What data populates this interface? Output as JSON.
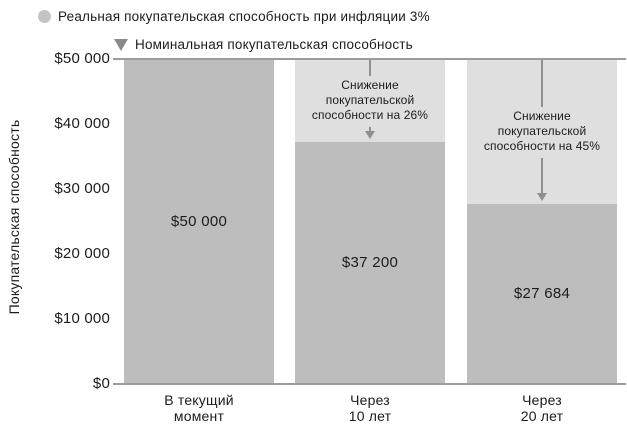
{
  "legend": {
    "items": [
      {
        "label": "Реальная покупательская способность при инфляции 3%",
        "marker": "circle",
        "color": "#c4c4c4"
      },
      {
        "label": "Номинальная покупательская способность",
        "marker": "triangle-down",
        "color": "#8a8a8a"
      }
    ]
  },
  "chart_data": {
    "type": "bar",
    "stacked": true,
    "title": "",
    "categories": [
      [
        "В текущий",
        "момент"
      ],
      [
        "Через",
        "10 лет"
      ],
      [
        "Через",
        "20 лет"
      ]
    ],
    "series": [
      {
        "name": "Номинальная покупательская способность",
        "values": [
          50000,
          50000,
          50000
        ],
        "color": "#dfdfdf"
      },
      {
        "name": "Реальная покупательская способность при инфляции 3%",
        "values": [
          50000,
          37200,
          27684
        ],
        "color": "#bdbdbd"
      }
    ],
    "bar_value_labels": [
      "$50 000",
      "$37 200",
      "$27 684"
    ],
    "ylabel": "Покупательская способность",
    "xlabel": "",
    "ylim": [
      0,
      50000
    ],
    "yticks": {
      "values": [
        0,
        10000,
        20000,
        30000,
        40000,
        50000
      ],
      "labels": [
        "$0",
        "$10 000",
        "$20 000",
        "$30 000",
        "$40 000",
        "$50 000"
      ]
    },
    "grid": false,
    "legend_position": "top-left",
    "annotations": [
      {
        "bar_index": 1,
        "text": "Снижение покупательской способности на 26%",
        "lines": [
          "Снижение",
          "покупательской",
          "способности на 26%"
        ]
      },
      {
        "bar_index": 2,
        "text": "Снижение покупательской способности на 45%",
        "lines": [
          "Снижение",
          "покупательской",
          "способности на 45%"
        ]
      }
    ]
  },
  "colors": {
    "axis_line": "#9c9c9c",
    "arrow": "#8f8f8f",
    "real_bar": "#bdbdbd",
    "nominal_bar": "#dfdfdf",
    "text": "#1c1c1c"
  }
}
